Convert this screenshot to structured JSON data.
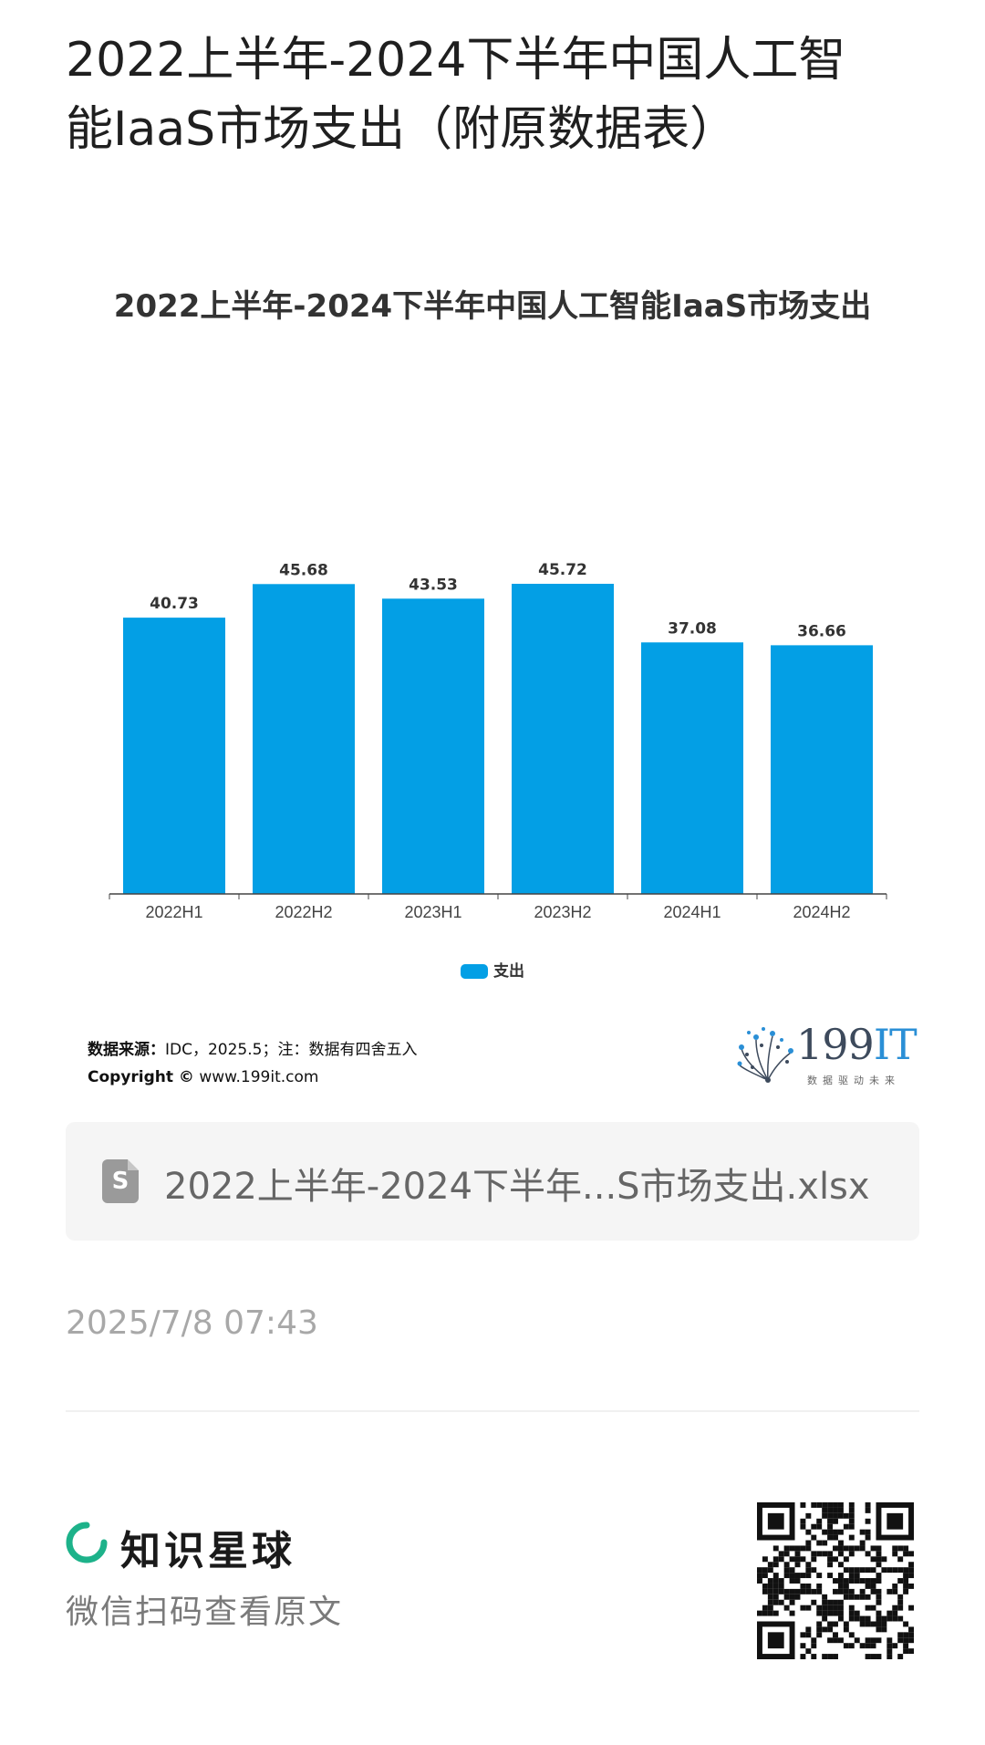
{
  "post": {
    "title": "2022上半年-2024下半年中国人工智能IaaS市场支出（附原数据表）",
    "attachment_icon": "file-icon",
    "attachment_icon_letter": "S",
    "attachment_name": "2022上半年-2024下半年...S市场支出.xlsx",
    "time": "2025/7/8 07:43"
  },
  "chart_data": {
    "type": "bar",
    "title": "2022上半年-2024下半年中国人工智能IaaS市场支出",
    "categories": [
      "2022H1",
      "2022H2",
      "2023H1",
      "2023H2",
      "2024H1",
      "2024H2"
    ],
    "series": [
      {
        "name": "支出",
        "values": [
          40.73,
          45.68,
          43.53,
          45.72,
          37.08,
          36.66
        ],
        "color": "#039fe5"
      }
    ],
    "value_labels": [
      "40.73",
      "45.68",
      "43.53",
      "45.72",
      "37.08",
      "36.66"
    ],
    "ylim": [
      0,
      50
    ],
    "y_axis_visible": false,
    "grid": false,
    "legend_position": "bottom"
  },
  "source": {
    "label": "数据来源：",
    "text": "IDC，2025.5；注：数据有四舍五入",
    "copyright_label": "Copyright ©",
    "copyright_site": "www.199it.com",
    "brand_name": "199",
    "brand_name_accent": "IT",
    "brand_tagline": "数据驱动未来"
  },
  "footer": {
    "platform_name": "知识星球",
    "scan_hint": "微信扫码查看原文"
  }
}
